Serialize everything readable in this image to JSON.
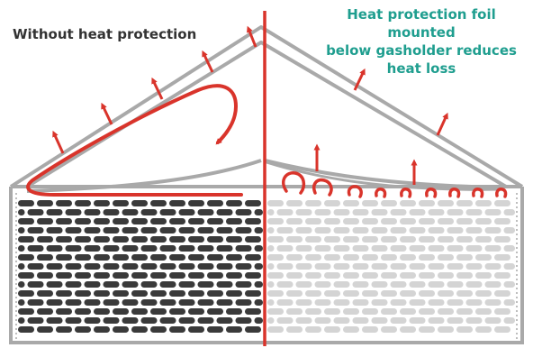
{
  "labels": {
    "without": "Without heat protection",
    "with_lines": [
      "Heat protection foil mounted",
      "below gasholder reduces",
      "heat loss"
    ]
  },
  "colors": {
    "structure": "#a9a9a9",
    "heat": "#d9342b",
    "dark_brick": "#3a3a3a",
    "light_brick": "#d4d4d4",
    "teal_text": "#1f9e8f",
    "dark_text": "#333333"
  }
}
